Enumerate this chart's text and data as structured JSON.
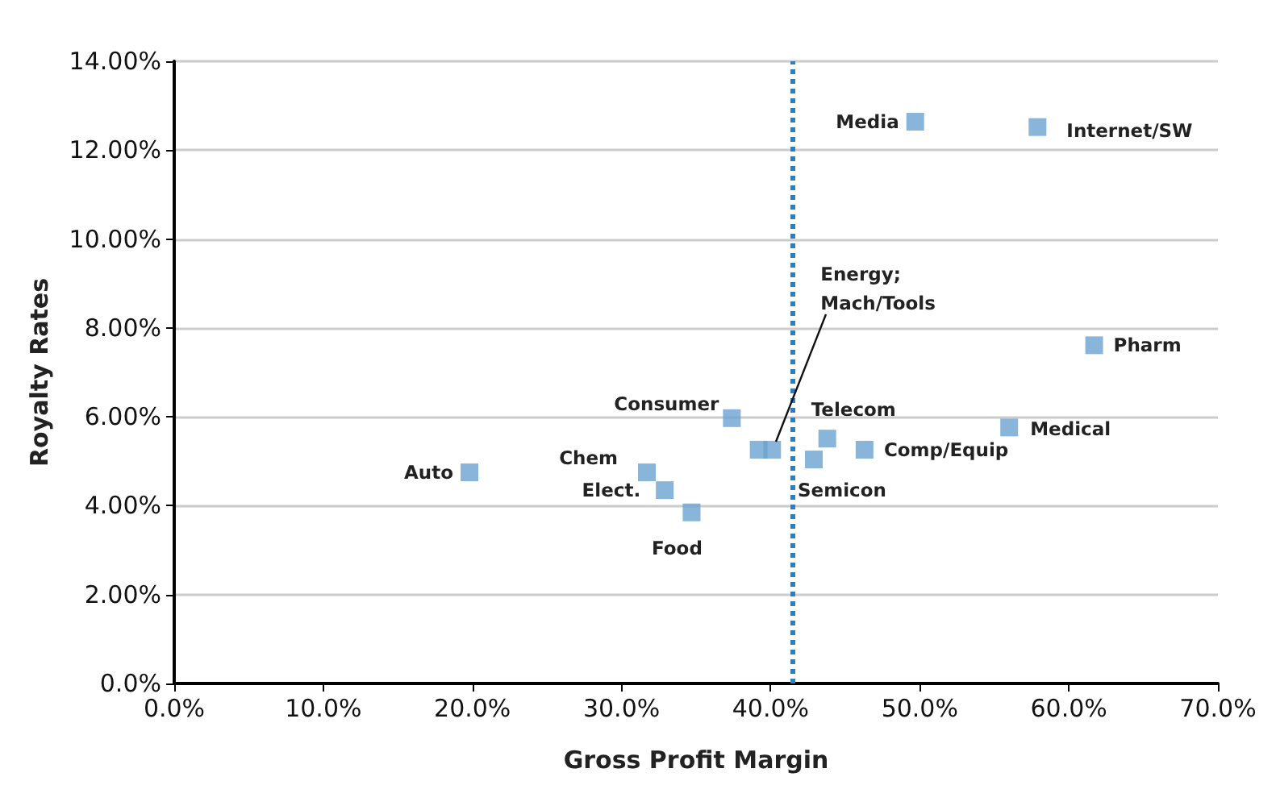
{
  "chart_data": {
    "type": "scatter",
    "xlabel": "Gross Profit Margin",
    "ylabel": "Royalty Rates",
    "series": [
      {
        "color": "#6aa2d0",
        "x": [
          19.8,
          31.7,
          32.9,
          34.7,
          37.4,
          39.2,
          40.1,
          43.8,
          42.9,
          46.3,
          56.0,
          61.7,
          49.7,
          57.9
        ],
        "values": [
          4.75,
          4.75,
          4.35,
          3.85,
          5.97,
          5.26,
          5.26,
          5.51,
          5.04,
          5.26,
          5.76,
          7.61,
          12.64,
          12.52
        ]
      }
    ],
    "annotations": [
      {
        "text": "Media",
        "x": 49.7,
        "y": 12.64
      },
      {
        "text": "Internet/SW",
        "x": 57.9,
        "y": 12.52
      },
      {
        "text": "Energy;\nMach/Tools",
        "x": 40.1,
        "y": 5.26
      },
      {
        "text": "Pharm",
        "x": 61.7,
        "y": 7.61
      },
      {
        "text": "Consumer",
        "x": 37.4,
        "y": 5.97
      },
      {
        "text": "Telecom",
        "x": 43.8,
        "y": 5.51
      },
      {
        "text": "Chem",
        "x": 31.7,
        "y": 4.75
      },
      {
        "text": "Auto",
        "x": 19.8,
        "y": 4.75
      },
      {
        "text": "Medical",
        "x": 56.0,
        "y": 5.76
      },
      {
        "text": "Comp/Equip",
        "x": 46.3,
        "y": 5.26
      },
      {
        "text": "Elect.",
        "x": 32.9,
        "y": 4.35
      },
      {
        "text": "Semicon",
        "x": 42.9,
        "y": 5.04
      },
      {
        "text": "Food",
        "x": 34.7,
        "y": 3.85
      }
    ],
    "xlim": [
      0,
      70
    ],
    "ylim": [
      0,
      14
    ],
    "xticks": [
      {
        "value": 0,
        "label": "0.0%"
      },
      {
        "value": 10,
        "label": "10.0%"
      },
      {
        "value": 20,
        "label": "20.0%"
      },
      {
        "value": 30,
        "label": "30.0%"
      },
      {
        "value": 40,
        "label": "40.0%"
      },
      {
        "value": 50,
        "label": "50.0%"
      },
      {
        "value": 60,
        "label": "60.0%"
      },
      {
        "value": 70,
        "label": "70.0%"
      }
    ],
    "yticks": [
      {
        "value": 0,
        "label": "0.0%"
      },
      {
        "value": 2,
        "label": "2.00%"
      },
      {
        "value": 4,
        "label": "4.00%"
      },
      {
        "value": 6,
        "label": "6.00%"
      },
      {
        "value": 8,
        "label": "8.00%"
      },
      {
        "value": 10,
        "label": "10.00%"
      },
      {
        "value": 12,
        "label": "12.00%"
      },
      {
        "value": 14,
        "label": "14.00%"
      }
    ],
    "ref_lines": [
      {
        "axis": "x",
        "value": 41.5,
        "color": "#2e7dc4",
        "line_style": "dotted"
      }
    ],
    "grid": "y",
    "marker": "square"
  }
}
